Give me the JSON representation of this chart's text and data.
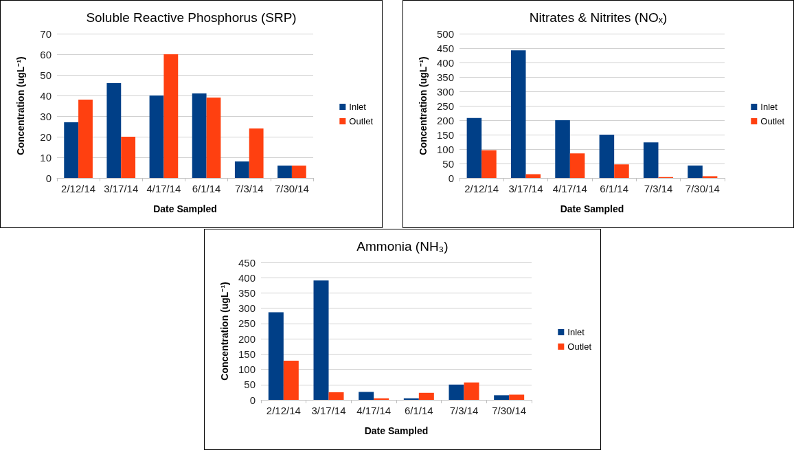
{
  "chart_data": [
    {
      "type": "bar",
      "title": "Soluble Reactive Phosphorus (SRP)",
      "xlabel": "Date Sampled",
      "ylabel": "Concentration (ugL⁻¹)",
      "categories": [
        "2/12/14",
        "3/17/14",
        "4/17/14",
        "6/1/14",
        "7/3/14",
        "7/30/14"
      ],
      "series": [
        {
          "name": "Inlet",
          "color": "#003f87",
          "values": [
            27,
            46,
            40,
            41,
            8,
            6
          ]
        },
        {
          "name": "Outlet",
          "color": "#ff4010",
          "values": [
            38,
            20,
            60,
            39,
            24,
            6
          ]
        }
      ],
      "ylim": [
        0,
        70
      ],
      "yticks": [
        0,
        10,
        20,
        30,
        40,
        50,
        60,
        70
      ],
      "grid": "y",
      "legend": "right"
    },
    {
      "type": "bar",
      "title": "Nitrates & Nitrites (NOₓ)",
      "xlabel": "Date Sampled",
      "ylabel": "Concentration (ugL⁻¹)",
      "categories": [
        "2/12/14",
        "3/17/14",
        "4/17/14",
        "6/1/14",
        "7/3/14",
        "7/30/14"
      ],
      "series": [
        {
          "name": "Inlet",
          "color": "#003f87",
          "values": [
            208,
            442,
            200,
            150,
            123,
            43
          ]
        },
        {
          "name": "Outlet",
          "color": "#ff4010",
          "values": [
            96,
            13,
            85,
            47,
            3,
            6
          ]
        }
      ],
      "ylim": [
        0,
        500
      ],
      "yticks": [
        0,
        50,
        100,
        150,
        200,
        250,
        300,
        350,
        400,
        450,
        500
      ],
      "grid": "y",
      "legend": "right"
    },
    {
      "type": "bar",
      "title": "Ammonia (NH₃)",
      "xlabel": "Date Sampled",
      "ylabel": "Concentration (ugL⁻¹)",
      "categories": [
        "2/12/14",
        "3/17/14",
        "4/17/14",
        "6/1/14",
        "7/3/14",
        "7/30/14"
      ],
      "series": [
        {
          "name": "Inlet",
          "color": "#003f87",
          "values": [
            287,
            391,
            26,
            5,
            50,
            15
          ]
        },
        {
          "name": "Outlet",
          "color": "#ff4010",
          "values": [
            128,
            25,
            5,
            23,
            57,
            17
          ]
        }
      ],
      "ylim": [
        0,
        450
      ],
      "yticks": [
        0,
        50,
        100,
        150,
        200,
        250,
        300,
        350,
        400,
        450
      ],
      "grid": "y",
      "legend": "right"
    }
  ]
}
